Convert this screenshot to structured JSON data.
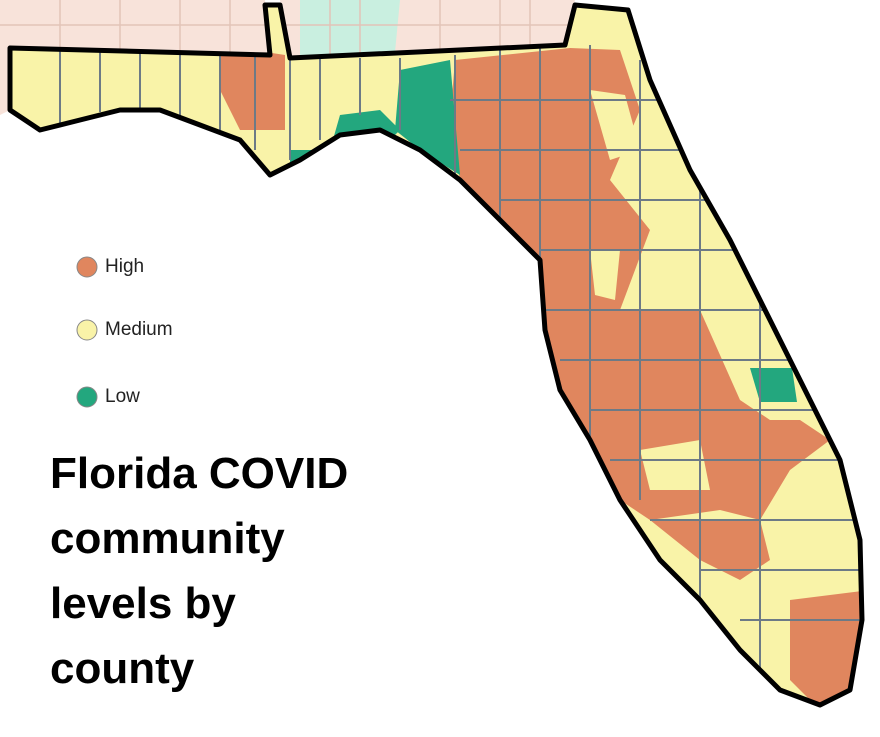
{
  "title_lines": [
    "Florida COVID",
    "community",
    "levels by",
    "county"
  ],
  "legend": [
    {
      "label": "High",
      "color": "#e0865e"
    },
    {
      "label": "Medium",
      "color": "#f9f3a8"
    },
    {
      "label": "Low",
      "color": "#23a77e"
    }
  ]
}
